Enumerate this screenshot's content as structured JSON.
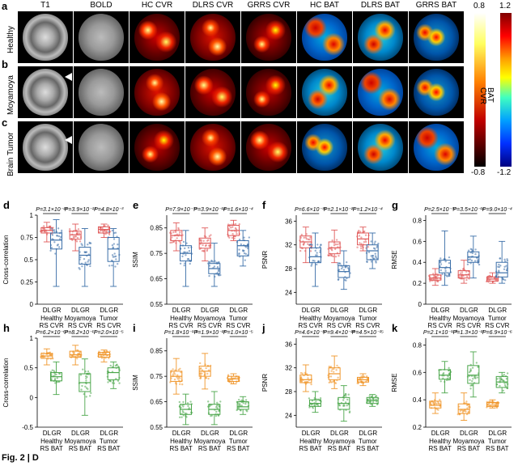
{
  "image_section": {
    "panel_labels": [
      "a",
      "b",
      "c"
    ],
    "column_headers": [
      "T1",
      "BOLD",
      "HC CVR",
      "DLRS CVR",
      "GRRS CVR",
      "HC BAT",
      "DLRS BAT",
      "GRRS BAT"
    ],
    "row_headers": [
      "Healthy",
      "Moyamoya",
      "Brain Tumor"
    ],
    "colorbar_cvr": {
      "max": "0.8",
      "min": "-0.8",
      "label": "CVR"
    },
    "colorbar_bat": {
      "max": "1.2",
      "min": "-1.2",
      "label": "BAT"
    }
  },
  "chart_data": [
    {
      "panel": "d",
      "type": "box",
      "ylabel": "Cross-correlation",
      "yticks": [
        0,
        0.25,
        0.5,
        0.75,
        1
      ],
      "ylim": [
        0,
        1
      ],
      "xlabels": [
        "DL",
        "GR",
        "DL",
        "GR",
        "DL",
        "GR"
      ],
      "groups": [
        "Healthy\nRS CVR",
        "Moyamoya\nRS CVR",
        "Tumor\nRS CVR"
      ],
      "pvalues": [
        "P=3.1×10⁻²³",
        "P=3.9×10⁻¹³",
        "P=4.8×10⁻³"
      ],
      "color_dl": "#e05a5a",
      "color_gr": "#3a6ea8",
      "medians": [
        0.83,
        0.72,
        0.78,
        0.55,
        0.84,
        0.62
      ],
      "q1": [
        0.8,
        0.62,
        0.73,
        0.45,
        0.8,
        0.48
      ],
      "q3": [
        0.86,
        0.8,
        0.82,
        0.64,
        0.87,
        0.75
      ],
      "wlo": [
        0.7,
        0.2,
        0.6,
        0.2,
        0.75,
        0.2
      ],
      "whi": [
        0.92,
        0.95,
        0.9,
        0.85,
        0.9,
        0.85
      ]
    },
    {
      "panel": "e",
      "type": "box",
      "ylabel": "SSIM",
      "yticks": [
        0.55,
        0.65,
        0.75,
        0.85
      ],
      "ylim": [
        0.55,
        0.9
      ],
      "xlabels": [
        "DL",
        "GR",
        "DL",
        "GR",
        "DL",
        "GR"
      ],
      "groups": [
        "Healthy\nRS CVR",
        "Moyamoya\nRS CVR",
        "Tumor\nRS CVR"
      ],
      "pvalues": [
        "P=7.9×10⁻³³",
        "P=3.9×10⁻¹⁸",
        "P=1.6×10⁻⁴"
      ],
      "color_dl": "#e05a5a",
      "color_gr": "#3a6ea8",
      "medians": [
        0.82,
        0.75,
        0.79,
        0.69,
        0.84,
        0.78
      ],
      "q1": [
        0.8,
        0.72,
        0.77,
        0.67,
        0.82,
        0.74
      ],
      "q3": [
        0.84,
        0.78,
        0.81,
        0.71,
        0.86,
        0.8
      ],
      "wlo": [
        0.76,
        0.62,
        0.72,
        0.62,
        0.8,
        0.7
      ],
      "whi": [
        0.87,
        0.84,
        0.85,
        0.79,
        0.88,
        0.84
      ]
    },
    {
      "panel": "f",
      "type": "box",
      "ylabel": "PSNR",
      "yticks": [
        24,
        28,
        32,
        36
      ],
      "ylim": [
        22,
        37
      ],
      "xlabels": [
        "DL",
        "GR",
        "DL",
        "GR",
        "DL",
        "GR"
      ],
      "groups": [
        "Healthy\nRS CVR",
        "Moyamoya\nRS CVR",
        "Tumor\nRS CVR"
      ],
      "pvalues": [
        "P=6.6×10⁻³⁶",
        "P=2.1×10⁻²¹",
        "P=1.2×10⁻⁴"
      ],
      "color_dl": "#e05a5a",
      "color_gr": "#3a6ea8",
      "medians": [
        32.5,
        30,
        31.5,
        27.5,
        33,
        31
      ],
      "q1": [
        31.5,
        29,
        30.5,
        26.5,
        32,
        29.5
      ],
      "q3": [
        33.5,
        31.5,
        32.5,
        28.5,
        34,
        32
      ],
      "wlo": [
        29,
        25,
        29,
        24.5,
        31,
        28
      ],
      "whi": [
        35,
        34,
        34.5,
        31,
        35,
        34
      ]
    },
    {
      "panel": "g",
      "type": "box",
      "ylabel": "RMSE",
      "yticks": [
        0,
        0.2,
        0.4,
        0.6,
        0.8
      ],
      "ylim": [
        0,
        0.85
      ],
      "xlabels": [
        "DL",
        "GR",
        "DL",
        "GR",
        "DL",
        "GR"
      ],
      "groups": [
        "Healthy\nRS CVR",
        "Moyamoya\nRS CVR",
        "Tumor\nRS CVR"
      ],
      "pvalues": [
        "P=2.5×10⁻³⁷",
        "P=3.5×10⁻¹⁶",
        "P=9.0×10⁻⁴"
      ],
      "color_dl": "#e05a5a",
      "color_gr": "#3a6ea8",
      "medians": [
        0.25,
        0.35,
        0.28,
        0.45,
        0.24,
        0.3
      ],
      "q1": [
        0.23,
        0.3,
        0.25,
        0.4,
        0.22,
        0.26
      ],
      "q3": [
        0.28,
        0.42,
        0.32,
        0.5,
        0.26,
        0.4
      ],
      "wlo": [
        0.18,
        0.18,
        0.2,
        0.25,
        0.2,
        0.2
      ],
      "whi": [
        0.34,
        0.7,
        0.42,
        0.65,
        0.3,
        0.6
      ]
    },
    {
      "panel": "h",
      "type": "box",
      "ylabel": "Cross-correlation",
      "yticks": [
        -0.5,
        0,
        0.5,
        1
      ],
      "ylim": [
        -0.5,
        1
      ],
      "xlabels": [
        "DL",
        "GR",
        "DL",
        "GR",
        "DL",
        "GR"
      ],
      "groups": [
        "Healthy\nRS BAT",
        "Moyamoya\nRS BAT",
        "Tumor\nRS BAT"
      ],
      "pvalues": [
        "P=6.2×10⁻⁶³",
        "P=8.2×10⁻¹⁷",
        "P=2.0×10⁻⁵"
      ],
      "color_dl": "#f0962a",
      "color_gr": "#4aa64a",
      "medians": [
        0.7,
        0.35,
        0.72,
        0.25,
        0.72,
        0.42
      ],
      "q1": [
        0.66,
        0.28,
        0.68,
        0.1,
        0.68,
        0.3
      ],
      "q3": [
        0.74,
        0.42,
        0.78,
        0.4,
        0.76,
        0.5
      ],
      "wlo": [
        0.55,
        0.05,
        0.55,
        -0.3,
        0.6,
        0.15
      ],
      "whi": [
        0.82,
        0.6,
        0.88,
        0.65,
        0.8,
        0.6
      ]
    },
    {
      "panel": "i",
      "type": "box",
      "ylabel": "SSIM",
      "yticks": [
        0.55,
        0.65,
        0.75,
        0.85
      ],
      "ylim": [
        0.55,
        0.9
      ],
      "xlabels": [
        "DL",
        "GR",
        "DL",
        "GR",
        "DL",
        "GR"
      ],
      "groups": [
        "Healthy\nRS BAT",
        "Moyamoya\nRS BAT",
        "Tumor\nRS BAT"
      ],
      "pvalues": [
        "P=1.8×10⁻¹¹⁶",
        "P=1.9×10⁻²³",
        "P=1.0×10⁻⁵"
      ],
      "color_dl": "#f0962a",
      "color_gr": "#4aa64a",
      "medians": [
        0.75,
        0.62,
        0.77,
        0.62,
        0.74,
        0.63
      ],
      "q1": [
        0.73,
        0.6,
        0.75,
        0.6,
        0.73,
        0.62
      ],
      "q3": [
        0.77,
        0.64,
        0.79,
        0.64,
        0.75,
        0.65
      ],
      "wlo": [
        0.68,
        0.56,
        0.7,
        0.56,
        0.72,
        0.6
      ],
      "whi": [
        0.82,
        0.68,
        0.84,
        0.69,
        0.76,
        0.67
      ]
    },
    {
      "panel": "j",
      "type": "box",
      "ylabel": "PSNR",
      "yticks": [
        24,
        28,
        32,
        36
      ],
      "ylim": [
        22,
        37
      ],
      "xlabels": [
        "DL",
        "GR",
        "DL",
        "GR",
        "DL",
        "GR"
      ],
      "groups": [
        "Healthy\nRS BAT",
        "Moyamoya\nRS BAT",
        "Tumor\nRS BAT"
      ],
      "pvalues": [
        "P=4.6×10⁻¹⁷",
        "P=9.4×10⁻²⁴",
        "P=4.5×10⁻¹⁵"
      ],
      "color_dl": "#f0962a",
      "color_gr": "#4aa64a",
      "medians": [
        30,
        26,
        31,
        26,
        30,
        26.5
      ],
      "q1": [
        29.5,
        25.5,
        30,
        25,
        29.6,
        26
      ],
      "q3": [
        30.8,
        26.6,
        32,
        27,
        30.4,
        27
      ],
      "wlo": [
        28,
        24.5,
        28.5,
        23,
        29,
        25.5
      ],
      "whi": [
        32.5,
        28,
        34,
        29,
        31,
        27.5
      ]
    },
    {
      "panel": "k",
      "type": "box",
      "ylabel": "RMSE",
      "yticks": [
        0.2,
        0.4,
        0.6,
        0.8
      ],
      "ylim": [
        0.2,
        0.85
      ],
      "xlabels": [
        "DL",
        "GR",
        "DL",
        "GR",
        "DL",
        "GR"
      ],
      "groups": [
        "Healthy\nRS BAT",
        "Moyamoya\nRS BAT",
        "Tumor\nRS BAT"
      ],
      "pvalues": [
        "P=2.1×10⁻¹¹⁰",
        "P=1.3×10⁻²¹",
        "P=6.9×10⁻⁶"
      ],
      "color_dl": "#f0962a",
      "color_gr": "#4aa64a",
      "medians": [
        0.36,
        0.58,
        0.33,
        0.58,
        0.36,
        0.53
      ],
      "q1": [
        0.34,
        0.55,
        0.3,
        0.52,
        0.35,
        0.49
      ],
      "q3": [
        0.39,
        0.62,
        0.37,
        0.65,
        0.38,
        0.57
      ],
      "wlo": [
        0.3,
        0.45,
        0.25,
        0.42,
        0.34,
        0.45
      ],
      "whi": [
        0.45,
        0.68,
        0.45,
        0.75,
        0.4,
        0.6
      ]
    }
  ],
  "caption": "Fig. 2 | D"
}
